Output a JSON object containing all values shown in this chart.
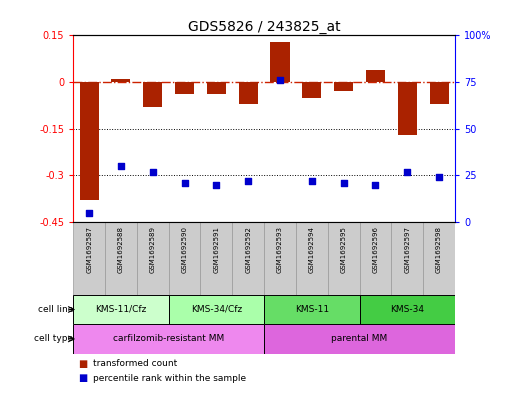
{
  "title": "GDS5826 / 243825_at",
  "samples": [
    "GSM1692587",
    "GSM1692588",
    "GSM1692589",
    "GSM1692590",
    "GSM1692591",
    "GSM1692592",
    "GSM1692593",
    "GSM1692594",
    "GSM1692595",
    "GSM1692596",
    "GSM1692597",
    "GSM1692598"
  ],
  "transformed_count": [
    -0.38,
    0.01,
    -0.08,
    -0.04,
    -0.04,
    -0.07,
    0.13,
    -0.05,
    -0.03,
    0.04,
    -0.17,
    -0.07
  ],
  "percentile_rank": [
    5,
    30,
    27,
    21,
    20,
    22,
    76,
    22,
    21,
    20,
    27,
    24
  ],
  "left_ylim": [
    -0.45,
    0.15
  ],
  "left_yticks": [
    0.15,
    0.0,
    -0.15,
    -0.3,
    -0.45
  ],
  "right_yticks": [
    100,
    75,
    50,
    25,
    0
  ],
  "cell_lines": [
    {
      "label": "KMS-11/Cfz",
      "start": 0,
      "end": 3,
      "color": "#ccffcc"
    },
    {
      "label": "KMS-34/Cfz",
      "start": 3,
      "end": 6,
      "color": "#aaffaa"
    },
    {
      "label": "KMS-11",
      "start": 6,
      "end": 9,
      "color": "#66dd66"
    },
    {
      "label": "KMS-34",
      "start": 9,
      "end": 12,
      "color": "#44cc44"
    }
  ],
  "cell_types": [
    {
      "label": "carfilzomib-resistant MM",
      "start": 0,
      "end": 6,
      "color": "#ee88ee"
    },
    {
      "label": "parental MM",
      "start": 6,
      "end": 12,
      "color": "#dd66dd"
    }
  ],
  "bar_color": "#aa2200",
  "dot_color": "#0000cc",
  "hline_color": "#cc2200",
  "sample_bg_color": "#cccccc",
  "sample_border_color": "#999999",
  "fig_width": 5.23,
  "fig_height": 3.93,
  "dpi": 100
}
